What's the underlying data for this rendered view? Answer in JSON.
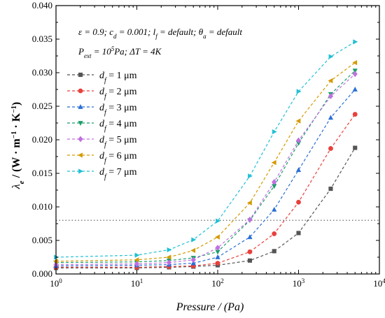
{
  "chart_data": {
    "type": "line",
    "xscale": "log",
    "xlim": [
      1,
      10000
    ],
    "ylim": [
      0,
      0.04
    ],
    "x_ticks": [
      {
        "value": 1,
        "mant": "10",
        "exp": "0"
      },
      {
        "value": 10,
        "mant": "10",
        "exp": "1"
      },
      {
        "value": 100,
        "mant": "10",
        "exp": "2"
      },
      {
        "value": 1000,
        "mant": "10",
        "exp": "3"
      },
      {
        "value": 10000,
        "mant": "10",
        "exp": "4"
      }
    ],
    "y_ticks": [
      "0.000",
      "0.005",
      "0.010",
      "0.015",
      "0.020",
      "0.025",
      "0.030",
      "0.035",
      "0.040"
    ],
    "xlabel": "Pressure / (Pa)",
    "ylabel": {
      "sym": "λ",
      "sub": "e",
      "unit_open": " / (W · m",
      "exp1": "−1",
      "mid": " · K",
      "exp2": "−1",
      "close": ")"
    },
    "annotations": [
      {
        "line": "ε = 0.9; c",
        "sub": "d",
        "rest": " = 0.001; l",
        "sub2": "f",
        "rest2": " = default; θ",
        "sub3": "a",
        "rest3": " = default"
      },
      {
        "line": "P",
        "sub": "ext",
        "rest": " = 10",
        "sup": "5",
        "rest2": "Pa; ΔT = 4K"
      }
    ],
    "reference_line": {
      "y": 0.008,
      "style": "dotted"
    },
    "legend_position": "upper-left",
    "x": [
      1,
      10,
      25,
      50,
      100,
      250,
      500,
      1000,
      2500,
      5000
    ],
    "series": [
      {
        "name": "1 μm",
        "sym": "d",
        "sub": "f",
        "eq": " = 1 μm",
        "color": "#555555",
        "marker": "square",
        "values": [
          0.0009,
          0.0009,
          0.001,
          0.0011,
          0.0013,
          0.002,
          0.0034,
          0.0061,
          0.0127,
          0.0188
        ]
      },
      {
        "name": "2 μm",
        "sym": "d",
        "sub": "f",
        "eq": " = 2 μm",
        "color": "#e8413c",
        "marker": "circle",
        "values": [
          0.001,
          0.001,
          0.0011,
          0.0012,
          0.0016,
          0.0033,
          0.006,
          0.0107,
          0.0187,
          0.0238
        ]
      },
      {
        "name": "3 μm",
        "sym": "d",
        "sub": "f",
        "eq": " = 3 μm",
        "color": "#2a6fd6",
        "marker": "triangle-up",
        "values": [
          0.0012,
          0.0013,
          0.0014,
          0.0016,
          0.0025,
          0.0055,
          0.0096,
          0.0155,
          0.0233,
          0.0275
        ]
      },
      {
        "name": "4 μm",
        "sym": "d",
        "sub": "f",
        "eq": " = 4 μm",
        "color": "#1a9e6a",
        "marker": "triangle-down",
        "values": [
          0.0017,
          0.0018,
          0.002,
          0.0024,
          0.0033,
          0.008,
          0.0131,
          0.0195,
          0.0268,
          0.0303
        ]
      },
      {
        "name": "5 μm",
        "sym": "d",
        "sub": "f",
        "eq": " = 5 μm",
        "color": "#c070e0",
        "marker": "diamond",
        "values": [
          0.0014,
          0.0015,
          0.0017,
          0.0021,
          0.0039,
          0.0081,
          0.0137,
          0.0199,
          0.0265,
          0.0298
        ]
      },
      {
        "name": "6 μm",
        "sym": "d",
        "sub": "f",
        "eq": " = 6 μm",
        "color": "#d49a00",
        "marker": "triangle-left",
        "values": [
          0.0019,
          0.0021,
          0.0025,
          0.0035,
          0.0055,
          0.0106,
          0.0166,
          0.0228,
          0.0288,
          0.0315
        ]
      },
      {
        "name": "7 μm",
        "sym": "d",
        "sub": "f",
        "eq": " = 7 μm",
        "color": "#22c0d4",
        "marker": "triangle-right",
        "values": [
          0.0025,
          0.0028,
          0.0036,
          0.0051,
          0.0079,
          0.0146,
          0.0212,
          0.0272,
          0.0324,
          0.0346
        ]
      }
    ]
  }
}
